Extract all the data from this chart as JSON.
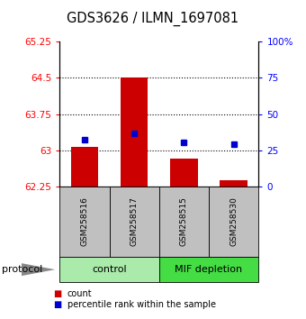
{
  "title": "GDS3626 / ILMN_1697081",
  "samples": [
    "GSM258516",
    "GSM258517",
    "GSM258515",
    "GSM258530"
  ],
  "bar_values": [
    63.07,
    64.5,
    62.82,
    62.38
  ],
  "bar_bottom": 62.25,
  "percentile_values": [
    63.22,
    63.35,
    63.17,
    63.12
  ],
  "ylim": [
    62.25,
    65.25
  ],
  "yticks_left": [
    62.25,
    63.0,
    63.75,
    64.5,
    65.25
  ],
  "yticks_left_labels": [
    "62.25",
    "63",
    "63.75",
    "64.5",
    "65.25"
  ],
  "yticks_right_labels": [
    "0",
    "25",
    "50",
    "75",
    "100%"
  ],
  "bar_color": "#cc0000",
  "percentile_color": "#0000cc",
  "control_color": "#aaeaaa",
  "mif_color": "#44dd44",
  "sample_box_color": "#c0c0c0",
  "legend_count_label": "count",
  "legend_percentile_label": "percentile rank within the sample",
  "protocol_label": "protocol",
  "bar_width": 0.55
}
